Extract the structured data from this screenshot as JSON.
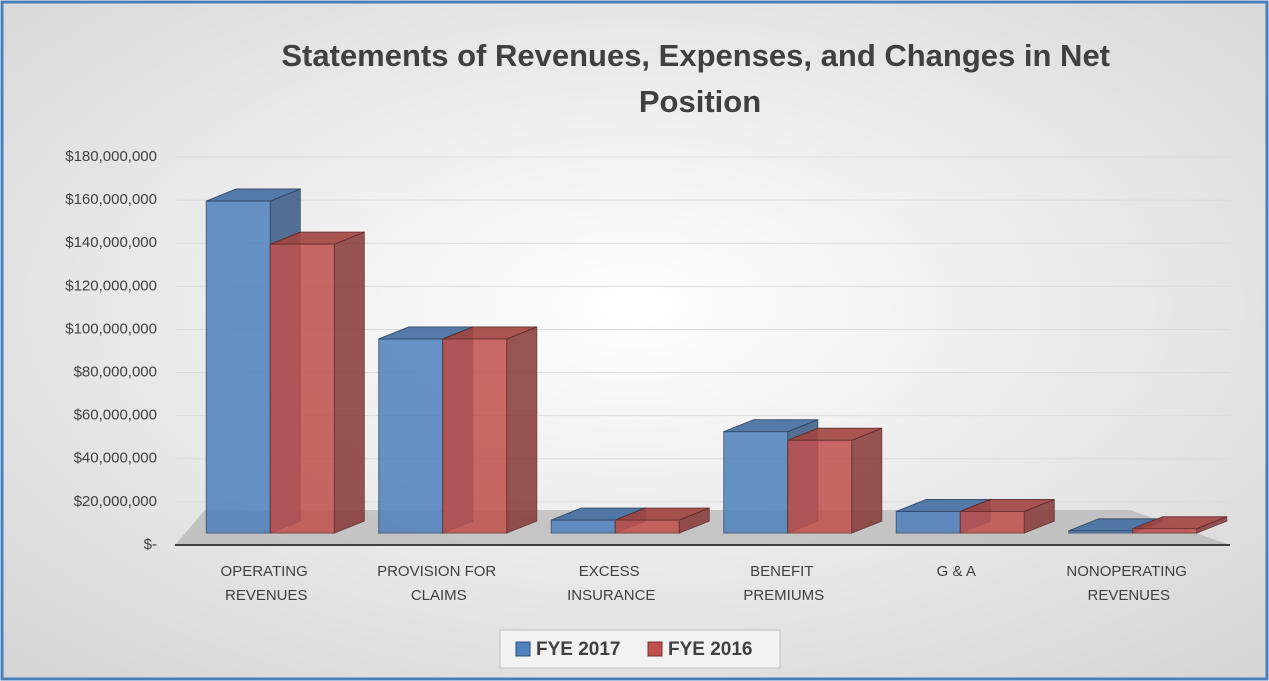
{
  "chart_data": {
    "type": "bar3d",
    "title": "Statements of Revenues, Expenses, and Changes in Net Position",
    "categories": [
      "OPERATING REVENUES",
      "PROVISION FOR CLAIMS",
      "EXCESS INSURANCE",
      "BENEFIT PREMIUMS",
      "G & A",
      "NONOPERATING REVENUES"
    ],
    "series": [
      {
        "name": "FYE 2017",
        "color": "#4f81bd",
        "values": [
          154000000,
          90000000,
          6000000,
          47000000,
          10000000,
          1000000
        ]
      },
      {
        "name": "FYE 2016",
        "color": "#c0504d",
        "values": [
          134000000,
          90000000,
          6000000,
          43000000,
          10000000,
          2000000
        ]
      }
    ],
    "ylim": [
      0,
      180000000
    ],
    "yticks": [
      {
        "value": 0,
        "label": "$-"
      },
      {
        "value": 20000000,
        "label": "$20,000,000"
      },
      {
        "value": 40000000,
        "label": "$40,000,000"
      },
      {
        "value": 60000000,
        "label": "$60,000,000"
      },
      {
        "value": 80000000,
        "label": "$80,000,000"
      },
      {
        "value": 100000000,
        "label": "$100,000,000"
      },
      {
        "value": 120000000,
        "label": "$120,000,000"
      },
      {
        "value": 140000000,
        "label": "$140,000,000"
      },
      {
        "value": 160000000,
        "label": "$160,000,000"
      },
      {
        "value": 180000000,
        "label": "$180,000,000"
      }
    ],
    "grid": true,
    "legend": "bottom"
  }
}
